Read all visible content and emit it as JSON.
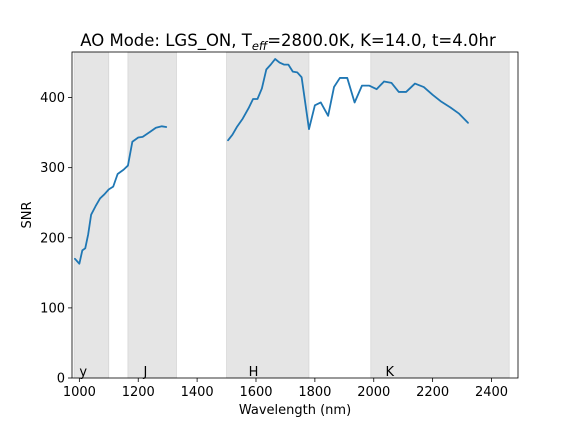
{
  "chart_data": {
    "type": "line",
    "title": {
      "prefix": "AO Mode: LGS_ON, T",
      "subscript": "eff",
      "suffix": "=2800.0K, K=14.0, t=4.0hr"
    },
    "xlabel": "Wavelength (nm)",
    "ylabel": "SNR",
    "xlim": [
      975,
      2490
    ],
    "ylim": [
      0,
      465
    ],
    "xticks": [
      1000,
      1200,
      1400,
      1600,
      1800,
      2000,
      2200,
      2400
    ],
    "yticks": [
      0,
      100,
      200,
      300,
      400
    ],
    "grid": false,
    "line_color": "#1f77b4",
    "band_color": "#e5e5e5",
    "bands": [
      {
        "name": "y",
        "start": 982,
        "end": 1100,
        "label_x": 1000
      },
      {
        "name": "J",
        "start": 1165,
        "end": 1330,
        "label_x": 1218
      },
      {
        "name": "H",
        "start": 1500,
        "end": 1780,
        "label_x": 1575
      },
      {
        "name": "K",
        "start": 1990,
        "end": 2460,
        "label_x": 2040
      }
    ],
    "series": [
      {
        "segments": [
          [
            [
              985,
              170
            ],
            [
              1000,
              163
            ],
            [
              1010,
              182
            ],
            [
              1020,
              185
            ],
            [
              1030,
              205
            ],
            [
              1040,
              233
            ],
            [
              1055,
              245
            ],
            [
              1070,
              256
            ],
            [
              1085,
              262
            ],
            [
              1100,
              269
            ],
            [
              1115,
              273
            ],
            [
              1130,
              291
            ],
            [
              1150,
              297
            ],
            [
              1165,
              303
            ],
            [
              1180,
              337
            ],
            [
              1200,
              343
            ],
            [
              1215,
              344
            ],
            [
              1240,
              351
            ],
            [
              1260,
              357
            ],
            [
              1280,
              359
            ],
            [
              1295,
              358
            ]
          ],
          [
            [
              1505,
              339
            ],
            [
              1520,
              347
            ],
            [
              1535,
              358
            ],
            [
              1555,
              370
            ],
            [
              1575,
              385
            ],
            [
              1590,
              398
            ],
            [
              1605,
              398
            ],
            [
              1620,
              413
            ],
            [
              1635,
              440
            ],
            [
              1650,
              447
            ],
            [
              1665,
              455
            ],
            [
              1680,
              450
            ],
            [
              1695,
              447
            ],
            [
              1710,
              447
            ],
            [
              1725,
              437
            ],
            [
              1740,
              436
            ],
            [
              1755,
              429
            ],
            [
              1780,
              355
            ],
            [
              1800,
              389
            ],
            [
              1820,
              393
            ],
            [
              1845,
              374
            ],
            [
              1865,
              415
            ],
            [
              1885,
              428
            ],
            [
              1910,
              428
            ],
            [
              1935,
              393
            ],
            [
              1960,
              417
            ],
            [
              1985,
              417
            ],
            [
              2010,
              412
            ],
            [
              2035,
              423
            ],
            [
              2060,
              421
            ],
            [
              2085,
              408
            ],
            [
              2110,
              408
            ],
            [
              2140,
              420
            ],
            [
              2170,
              415
            ],
            [
              2200,
              404
            ],
            [
              2230,
              394
            ],
            [
              2260,
              386
            ],
            [
              2290,
              377
            ],
            [
              2320,
              364
            ]
          ]
        ]
      }
    ]
  }
}
